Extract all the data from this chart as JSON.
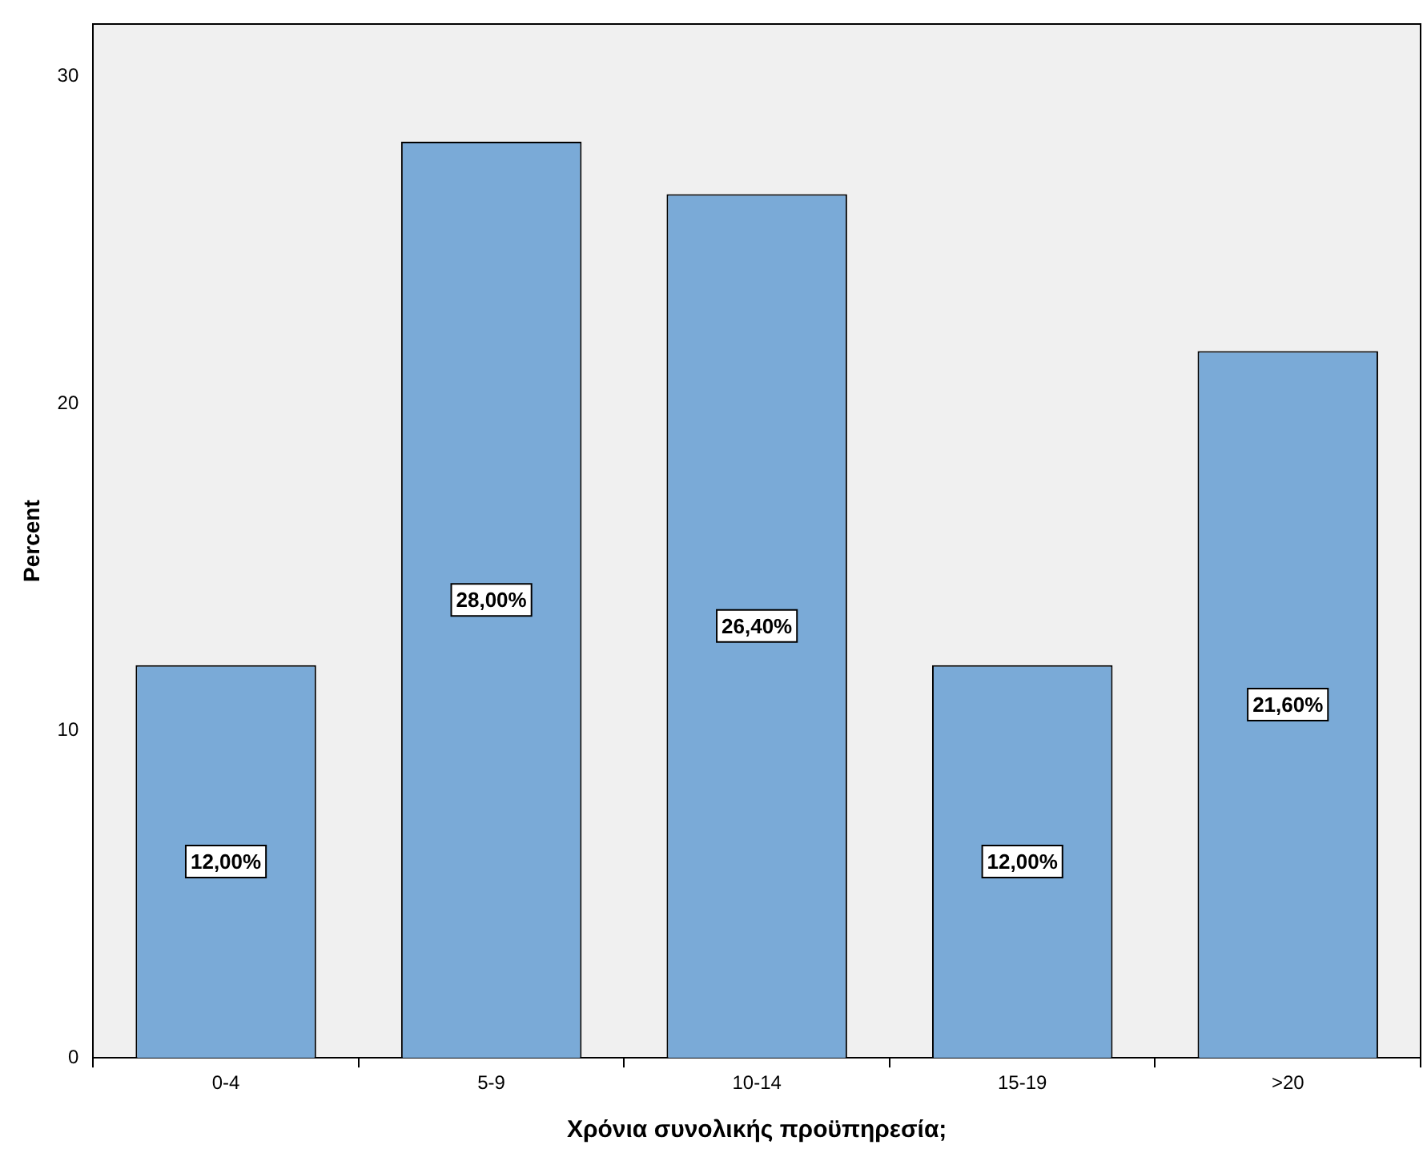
{
  "chart_data": {
    "type": "bar",
    "xlabel": "Χρόνια συνολικής προϋπηρεσία;",
    "ylabel": "Percent",
    "categories": [
      "0-4",
      "5-9",
      "10-14",
      "15-19",
      ">20"
    ],
    "values": [
      12,
      28,
      26.4,
      12,
      21.6
    ],
    "value_labels": [
      "12,00%",
      "28,00%",
      "26,40%",
      "12,00%",
      "21,60%"
    ],
    "color": "#7aaad7",
    "ylim": [
      0,
      31.6
    ],
    "yticks": [
      0,
      10,
      20,
      30
    ],
    "grid": false,
    "legend": false
  }
}
